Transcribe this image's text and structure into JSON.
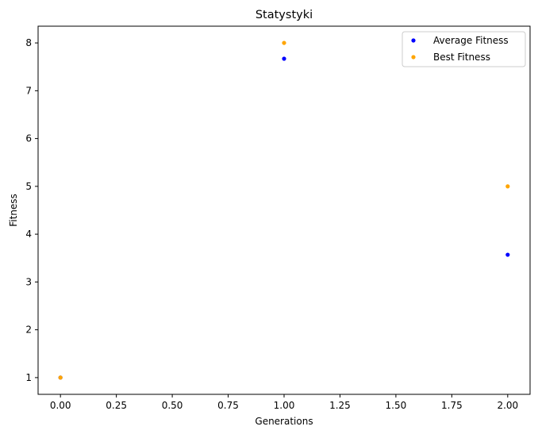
{
  "chart_data": {
    "type": "scatter",
    "title": "Statystyki",
    "xlabel": "Generations",
    "ylabel": "Fitness",
    "xlim": [
      -0.1,
      2.1
    ],
    "ylim": [
      0.65,
      8.35
    ],
    "xticks": [
      0.0,
      0.25,
      0.5,
      0.75,
      1.0,
      1.25,
      1.5,
      1.75,
      2.0
    ],
    "xtick_labels": [
      "0.00",
      "0.25",
      "0.50",
      "0.75",
      "1.00",
      "1.25",
      "1.50",
      "1.75",
      "2.00"
    ],
    "yticks": [
      1,
      2,
      3,
      4,
      5,
      6,
      7,
      8
    ],
    "ytick_labels": [
      "1",
      "2",
      "3",
      "4",
      "5",
      "6",
      "7",
      "8"
    ],
    "grid": false,
    "legend_position": "upper right",
    "series": [
      {
        "name": "Average Fitness",
        "color": "#0000ff",
        "x": [
          0,
          1,
          2
        ],
        "y": [
          1.0,
          7.67,
          3.57
        ]
      },
      {
        "name": "Best Fitness",
        "color": "#ffa500",
        "x": [
          0,
          1,
          2
        ],
        "y": [
          1.0,
          8.0,
          5.0
        ]
      }
    ]
  }
}
